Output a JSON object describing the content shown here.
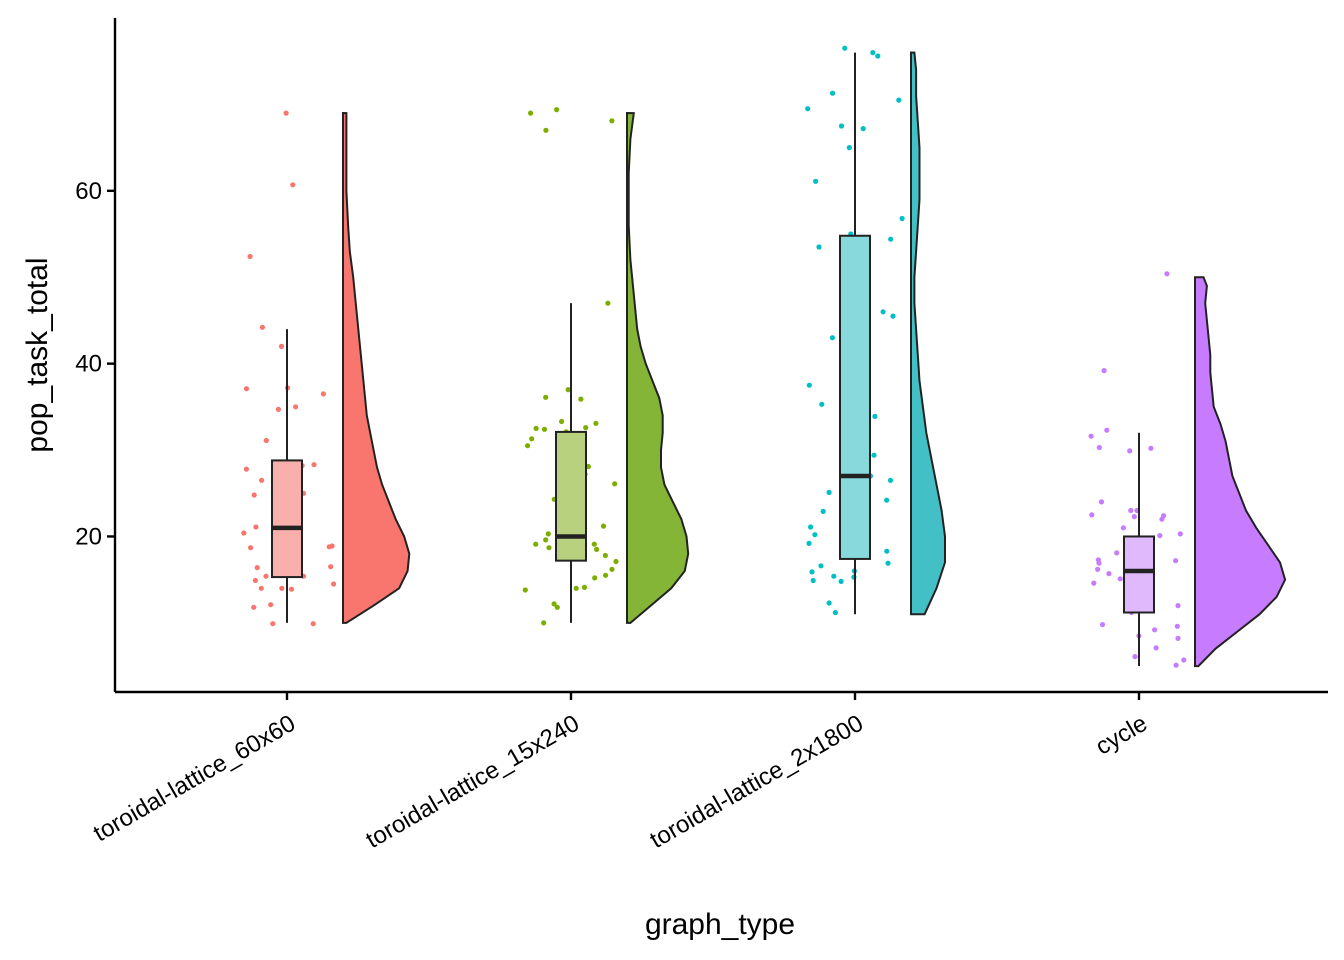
{
  "chart_data": {
    "type": "raincloud",
    "xlabel": "graph_type",
    "ylabel": "pop_task_total",
    "ylim": [
      2,
      80
    ],
    "yticks": [
      20,
      40,
      60
    ],
    "categories": [
      "toroidal-lattice_60x60",
      "toroidal-lattice_15x240",
      "toroidal-lattice_2x1800",
      "cycle"
    ],
    "colors": [
      "#F8766D",
      "#7CAE00",
      "#00BFC4",
      "#C77CFF"
    ],
    "fill_colors": [
      "#F8766D",
      "#85B536",
      "#43C0C6",
      "#C77CFF"
    ],
    "box_fill_colors": [
      "#F9B0AC",
      "#B7D17F",
      "#88D9DC",
      "#E0B9FD"
    ],
    "series": [
      {
        "category": "toroidal-lattice_60x60",
        "box": {
          "min": 10,
          "q1": 15.3,
          "median": 21,
          "q3": 28.8,
          "max": 44
        },
        "violin": [
          [
            10,
            0.02
          ],
          [
            12,
            0.18
          ],
          [
            14,
            0.33
          ],
          [
            16,
            0.38
          ],
          [
            18,
            0.39
          ],
          [
            20,
            0.36
          ],
          [
            22,
            0.31
          ],
          [
            24,
            0.27
          ],
          [
            26,
            0.23
          ],
          [
            28,
            0.2
          ],
          [
            30,
            0.18
          ],
          [
            32,
            0.16
          ],
          [
            34,
            0.14
          ],
          [
            36,
            0.13
          ],
          [
            38,
            0.12
          ],
          [
            40,
            0.11
          ],
          [
            42,
            0.1
          ],
          [
            44,
            0.09
          ],
          [
            46,
            0.08
          ],
          [
            48,
            0.07
          ],
          [
            50,
            0.06
          ],
          [
            53,
            0.04
          ],
          [
            56,
            0.03
          ],
          [
            60,
            0.02
          ],
          [
            64,
            0.02
          ],
          [
            69,
            0.02
          ]
        ],
        "points": [
          69,
          60.7,
          52.4,
          44.2,
          42,
          37.2,
          37.1,
          36.5,
          35,
          34.7,
          31.1,
          28.3,
          28.2,
          27.8,
          27.9,
          26.5,
          25,
          24.8,
          24.7,
          21.4,
          21.1,
          20.4,
          18.8,
          18.9,
          18.7,
          17.1,
          16.5,
          16.4,
          16.3,
          16,
          15.4,
          15.4,
          14.9,
          14.5,
          14,
          14,
          13.9,
          12.1,
          11.8,
          9.9,
          9.9
        ]
      },
      {
        "category": "toroidal-lattice_15x240",
        "box": {
          "min": 10,
          "q1": 17.2,
          "median": 20,
          "q3": 32.1,
          "max": 47
        },
        "violin": [
          [
            10,
            0.02
          ],
          [
            12,
            0.14
          ],
          [
            14,
            0.26
          ],
          [
            16,
            0.34
          ],
          [
            18,
            0.36
          ],
          [
            20,
            0.35
          ],
          [
            22,
            0.32
          ],
          [
            24,
            0.27
          ],
          [
            26,
            0.22
          ],
          [
            28,
            0.2
          ],
          [
            30,
            0.2
          ],
          [
            32,
            0.21
          ],
          [
            34,
            0.21
          ],
          [
            36,
            0.19
          ],
          [
            38,
            0.15
          ],
          [
            40,
            0.11
          ],
          [
            42,
            0.08
          ],
          [
            44,
            0.06
          ],
          [
            46,
            0.05
          ],
          [
            48,
            0.04
          ],
          [
            52,
            0.02
          ],
          [
            56,
            0.01
          ],
          [
            62,
            0.01
          ],
          [
            66,
            0.02
          ],
          [
            69,
            0.04
          ]
        ],
        "points": [
          69.4,
          69,
          68.1,
          67,
          47,
          37,
          36.1,
          35.9,
          33.3,
          33.1,
          32.6,
          32.5,
          32.4,
          32.1,
          31.3,
          30.5,
          29.4,
          28.1,
          27.2,
          26.1,
          24.3,
          23,
          22.8,
          22.3,
          21.2,
          21.1,
          20.5,
          20.3,
          19.6,
          19.1,
          19.1,
          18.7,
          18.5,
          17.8,
          17.1,
          16.2,
          15.5,
          15.2,
          14.1,
          14,
          13.8,
          12.2,
          11.8,
          10
        ]
      },
      {
        "category": "toroidal-lattice_2x1800",
        "box": {
          "min": 11,
          "q1": 17.4,
          "median": 27,
          "q3": 54.8,
          "max": 76
        },
        "violin": [
          [
            11,
            0.08
          ],
          [
            14,
            0.15
          ],
          [
            17,
            0.2
          ],
          [
            20,
            0.2
          ],
          [
            23,
            0.18
          ],
          [
            26,
            0.15
          ],
          [
            29,
            0.12
          ],
          [
            32,
            0.09
          ],
          [
            35,
            0.07
          ],
          [
            38,
            0.05
          ],
          [
            41,
            0.04
          ],
          [
            44,
            0.03
          ],
          [
            47,
            0.02
          ],
          [
            50,
            0.02
          ],
          [
            53,
            0.03
          ],
          [
            56,
            0.04
          ],
          [
            59,
            0.05
          ],
          [
            62,
            0.05
          ],
          [
            65,
            0.05
          ],
          [
            68,
            0.04
          ],
          [
            71,
            0.03
          ],
          [
            74,
            0.03
          ],
          [
            76,
            0.02
          ]
        ],
        "points": [
          76.5,
          76,
          75.6,
          71.3,
          70.5,
          69.5,
          67.5,
          67.2,
          65,
          61.1,
          56.8,
          55,
          54.4,
          54.1,
          53.7,
          53.5,
          46,
          45.5,
          43,
          37.5,
          35.3,
          33.9,
          29.4,
          27,
          26.5,
          25.1,
          24.2,
          22.9,
          21.1,
          20.2,
          19.2,
          18.6,
          18.3,
          16.9,
          16.6,
          16,
          15.9,
          15.4,
          15.3,
          14.9,
          14.8,
          12.3,
          11.2
        ]
      },
      {
        "category": "cycle",
        "box": {
          "min": 5,
          "q1": 11.2,
          "median": 16,
          "q3": 20,
          "max": 32
        },
        "violin": [
          [
            5,
            0.02
          ],
          [
            7,
            0.12
          ],
          [
            9,
            0.25
          ],
          [
            11,
            0.38
          ],
          [
            13,
            0.48
          ],
          [
            15,
            0.53
          ],
          [
            17,
            0.5
          ],
          [
            19,
            0.43
          ],
          [
            21,
            0.36
          ],
          [
            23,
            0.3
          ],
          [
            25,
            0.26
          ],
          [
            27,
            0.22
          ],
          [
            29,
            0.2
          ],
          [
            31,
            0.18
          ],
          [
            33,
            0.15
          ],
          [
            35,
            0.11
          ],
          [
            37,
            0.1
          ],
          [
            39,
            0.09
          ],
          [
            41,
            0.09
          ],
          [
            43,
            0.08
          ],
          [
            45,
            0.07
          ],
          [
            47,
            0.06
          ],
          [
            49,
            0.07
          ],
          [
            50,
            0.05
          ]
        ],
        "points": [
          50.4,
          39.2,
          32.3,
          31.6,
          30.2,
          30.3,
          29.9,
          24,
          23,
          23,
          22.5,
          22.4,
          22.3,
          22,
          21,
          20.3,
          20.1,
          19.2,
          18.1,
          17.5,
          17.3,
          17.2,
          16.9,
          16.2,
          15.7,
          15.1,
          14.6,
          13.3,
          12.7,
          12.5,
          12.3,
          12,
          11.4,
          11.2,
          9.8,
          9.6,
          9.2,
          8.5,
          8.2,
          7.1,
          6.1,
          5.7,
          5.1
        ]
      }
    ]
  }
}
